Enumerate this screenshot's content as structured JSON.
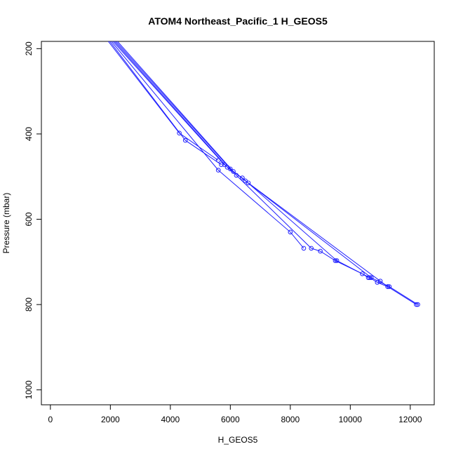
{
  "chart_data": {
    "type": "line",
    "title": "ATOM4 Northeast_Pacific_1 H_GEOS5",
    "xlabel": "H_GEOS5",
    "ylabel": "Pressure (mbar)",
    "xlim": [
      -300,
      12800
    ],
    "ylim": [
      1035,
      183
    ],
    "y_reversed": true,
    "xticks": [
      0,
      2000,
      4000,
      6000,
      8000,
      10000,
      12000
    ],
    "yticks": [
      200,
      400,
      600,
      800,
      1000
    ],
    "grid": false,
    "legend": "none",
    "color": "#1f1fff",
    "series": [
      {
        "points": [
          [
            1900,
            180
          ],
          [
            4300,
            398
          ],
          [
            5600,
            462
          ]
        ]
      },
      {
        "points": [
          [
            1950,
            180
          ],
          [
            4500,
            415
          ],
          [
            5700,
            472
          ]
        ]
      },
      {
        "points": [
          [
            2000,
            180
          ],
          [
            5600,
            485
          ],
          [
            8000,
            630
          ],
          [
            8450,
            668
          ]
        ]
      },
      {
        "points": [
          [
            2050,
            180
          ],
          [
            5800,
            472
          ],
          [
            6200,
            497
          ],
          [
            8700,
            668
          ],
          [
            9000,
            675
          ],
          [
            9500,
            697
          ],
          [
            10400,
            728
          ],
          [
            10600,
            737
          ]
        ]
      },
      {
        "points": [
          [
            2100,
            180
          ],
          [
            5900,
            478
          ],
          [
            6400,
            503
          ],
          [
            9550,
            697
          ],
          [
            10650,
            737
          ],
          [
            10900,
            748
          ],
          [
            11250,
            758
          ]
        ]
      },
      {
        "points": [
          [
            2150,
            180
          ],
          [
            6000,
            482
          ],
          [
            6500,
            510
          ],
          [
            10700,
            737
          ],
          [
            11300,
            758
          ],
          [
            12250,
            800
          ]
        ]
      },
      {
        "points": [
          [
            2200,
            180
          ],
          [
            6100,
            488
          ],
          [
            6600,
            515
          ],
          [
            11000,
            745
          ],
          [
            11250,
            758
          ],
          [
            12200,
            800
          ]
        ]
      }
    ]
  }
}
